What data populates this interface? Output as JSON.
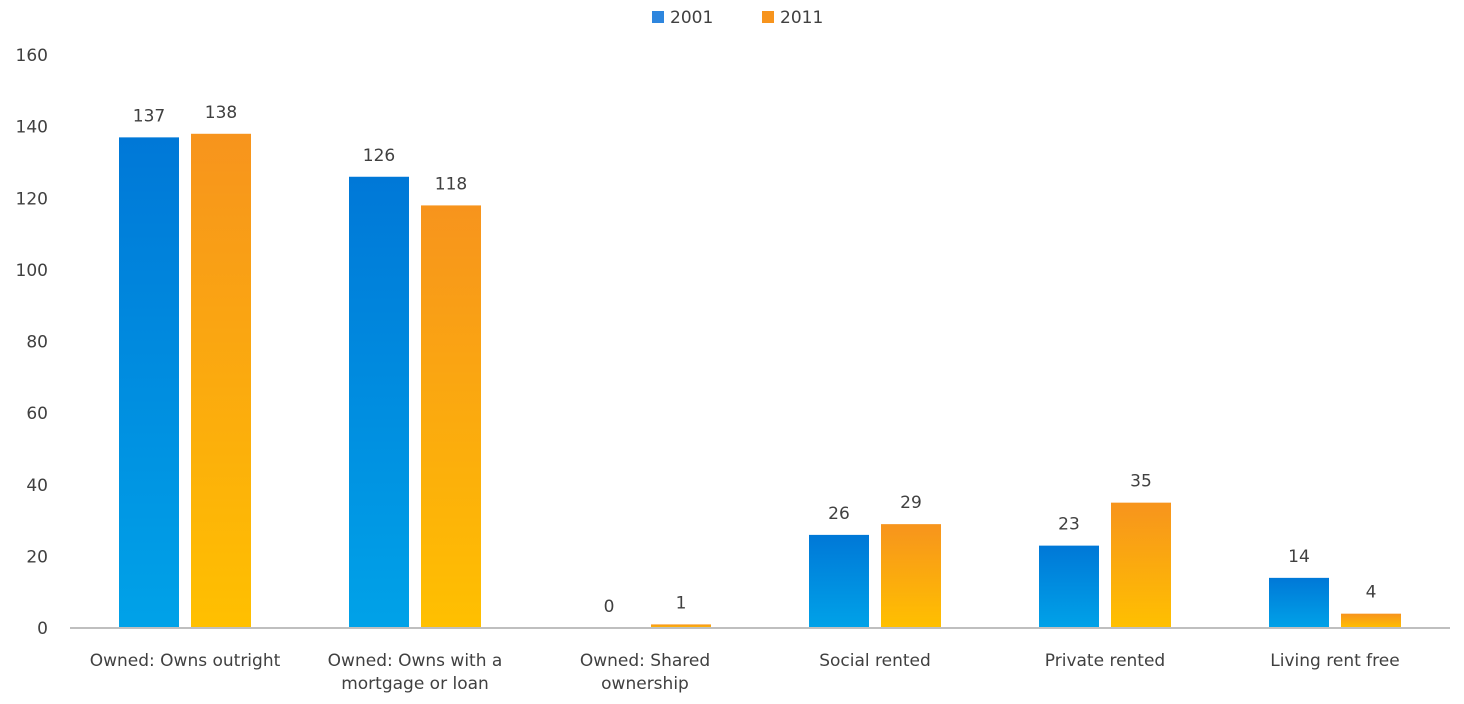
{
  "chart_data": {
    "type": "bar",
    "categories": [
      [
        "Owned: Owns outright"
      ],
      [
        "Owned: Owns with a",
        "mortgage or loan"
      ],
      [
        "Owned: Shared",
        "ownership"
      ],
      [
        "Social rented"
      ],
      [
        "Private rented"
      ],
      [
        "Living rent free"
      ]
    ],
    "series": [
      {
        "name": "2001",
        "values": [
          137,
          126,
          0,
          26,
          23,
          14
        ],
        "color": "#00A2E8",
        "gradient_top": "#0078D7"
      },
      {
        "name": "2011",
        "values": [
          138,
          118,
          1,
          29,
          35,
          4
        ],
        "color": "#FFC000",
        "gradient_top": "#F7941D"
      }
    ],
    "data_labels": [
      [
        "137",
        "126",
        "0",
        "26",
        "23",
        "14"
      ],
      [
        "138",
        "118",
        "1",
        "29",
        "35",
        "4"
      ]
    ],
    "y_ticks": [
      "0",
      "20",
      "40",
      "60",
      "80",
      "100",
      "120",
      "140",
      "160"
    ],
    "ylim": [
      0,
      160
    ],
    "grid": false,
    "legend_position": "top-center",
    "title": "",
    "xlabel": "",
    "ylabel": ""
  }
}
